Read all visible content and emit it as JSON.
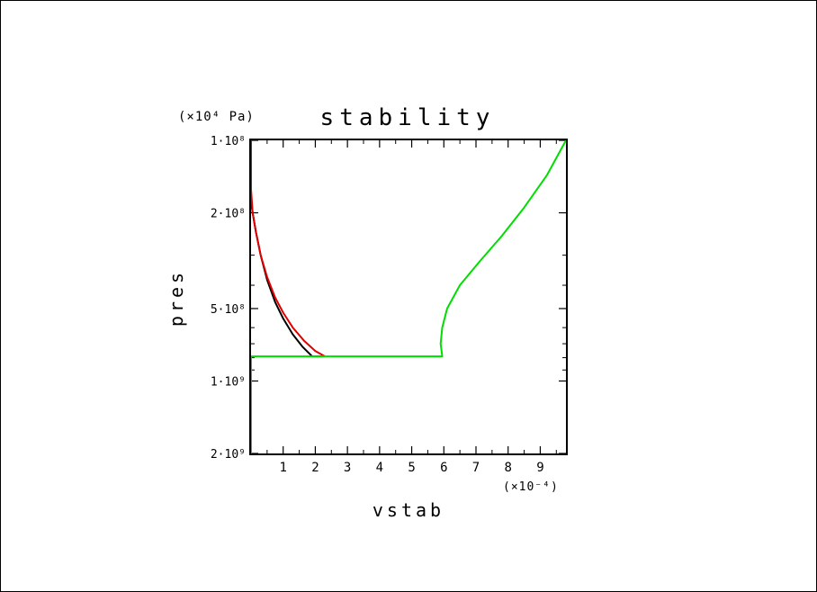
{
  "chart_data": {
    "type": "line",
    "title": "stability",
    "xlabel": "vstab",
    "ylabel": "pres",
    "x_multiplier": "(×10⁻⁴)",
    "y_unit": "(×10⁴ Pa)",
    "xlim": [
      0,
      9.8
    ],
    "ylim": [
      100000000,
      2000000000
    ],
    "y_scale": "log",
    "y_inverted": true,
    "x_ticks": [
      1,
      2,
      3,
      4,
      5,
      6,
      7,
      8,
      9
    ],
    "y_ticks": [
      {
        "value": 100000000,
        "label": "1·10⁸"
      },
      {
        "value": 200000000,
        "label": "2·10⁸"
      },
      {
        "value": 500000000,
        "label": "5·10⁸"
      },
      {
        "value": 1000000000,
        "label": "1·10⁹"
      },
      {
        "value": 2000000000,
        "label": "2·10⁹"
      }
    ],
    "grid": false,
    "series": [
      {
        "color": "#000000",
        "points": [
          [
            0,
            180000000
          ],
          [
            0.05,
            200000000
          ],
          [
            0.15,
            240000000
          ],
          [
            0.3,
            300000000
          ],
          [
            0.5,
            380000000
          ],
          [
            0.75,
            470000000
          ],
          [
            1.0,
            550000000
          ],
          [
            1.3,
            640000000
          ],
          [
            1.6,
            720000000
          ],
          [
            1.9,
            790000000
          ],
          [
            2.25,
            790000000
          ]
        ]
      },
      {
        "color": "#e00000",
        "points": [
          [
            0,
            100000000
          ],
          [
            0,
            160000000
          ],
          [
            0.05,
            200000000
          ],
          [
            0.15,
            240000000
          ],
          [
            0.3,
            300000000
          ],
          [
            0.5,
            370000000
          ],
          [
            0.75,
            450000000
          ],
          [
            1.0,
            520000000
          ],
          [
            1.3,
            600000000
          ],
          [
            1.65,
            680000000
          ],
          [
            2.0,
            750000000
          ],
          [
            2.3,
            790000000
          ]
        ]
      },
      {
        "color": "#00dd00",
        "points": [
          [
            0,
            2000000000
          ],
          [
            0,
            790000000
          ],
          [
            5.95,
            790000000
          ],
          [
            5.9,
            700000000
          ],
          [
            5.95,
            600000000
          ],
          [
            6.1,
            500000000
          ],
          [
            6.5,
            400000000
          ],
          [
            7.1,
            320000000
          ],
          [
            7.8,
            250000000
          ],
          [
            8.5,
            190000000
          ],
          [
            9.2,
            140000000
          ],
          [
            9.8,
            100000000
          ]
        ]
      }
    ]
  }
}
